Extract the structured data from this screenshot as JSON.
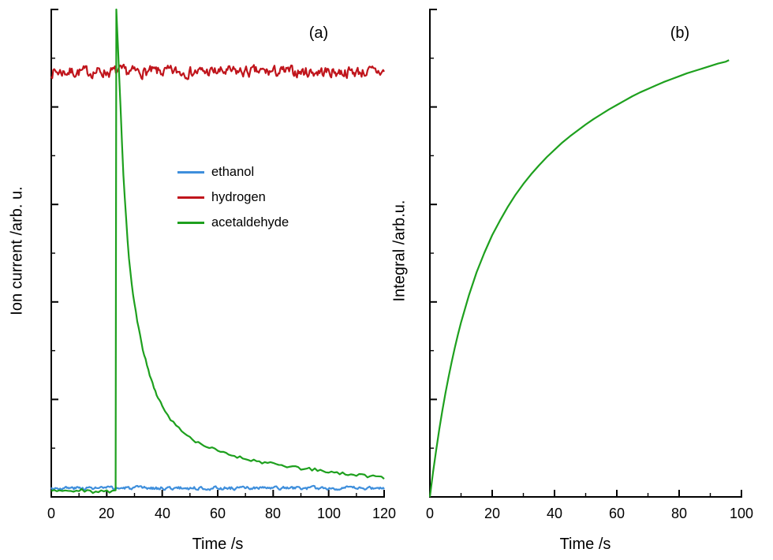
{
  "figure": {
    "background_color": "#ffffff",
    "axis_color": "#000000"
  },
  "chart_data": [
    {
      "id": "a",
      "type": "line",
      "panel_label": "(a)",
      "xlabel": "Time /s",
      "ylabel": "Ion current /arb. u.",
      "xlim": [
        0,
        120
      ],
      "ylim": [
        0,
        1
      ],
      "xticks": [
        0,
        20,
        40,
        60,
        80,
        100,
        120
      ],
      "x_minor_step": 10,
      "yticks": [
        0,
        0.2,
        0.4,
        0.6,
        0.8,
        1
      ],
      "y_minor_step": 0.1,
      "y_tick_labels_shown": false,
      "grid": false,
      "legend": {
        "position": "center-left",
        "entries": [
          "ethanol",
          "hydrogen",
          "acetaldehyde"
        ]
      },
      "series": [
        {
          "name": "ethanol",
          "color": "#3f8fdc",
          "style": "noisy_flat",
          "baseline": 0.018,
          "noise": 0.0035,
          "seed": 3
        },
        {
          "name": "hydrogen",
          "color": "#c0151c",
          "style": "noisy_flat",
          "baseline": 0.872,
          "noise": 0.012,
          "seed": 7
        },
        {
          "name": "acetaldehyde",
          "color": "#1ea01e",
          "style": "points",
          "noise": 0.003,
          "seed": 11,
          "points": [
            [
              0,
              0.012
            ],
            [
              1,
              0.014
            ],
            [
              2,
              0.011
            ],
            [
              3,
              0.013
            ],
            [
              4,
              0.01
            ],
            [
              5,
              0.013
            ],
            [
              6,
              0.015
            ],
            [
              7,
              0.012
            ],
            [
              8,
              0.01
            ],
            [
              9,
              0.013
            ],
            [
              10,
              0.012
            ],
            [
              11,
              0.014
            ],
            [
              12,
              0.011
            ],
            [
              13,
              0.013
            ],
            [
              14,
              0.012
            ],
            [
              15,
              0.01
            ],
            [
              16,
              0.013
            ],
            [
              17,
              0.011
            ],
            [
              18,
              0.014
            ],
            [
              19,
              0.012
            ],
            [
              20,
              0.013
            ],
            [
              21,
              0.011
            ],
            [
              22,
              0.012
            ],
            [
              23,
              0.013
            ],
            [
              23.2,
              0.014
            ],
            [
              23.45,
              0.998
            ],
            [
              23.7,
              0.965
            ],
            [
              24,
              0.928
            ],
            [
              24.5,
              0.862
            ],
            [
              25,
              0.795
            ],
            [
              25.5,
              0.726
            ],
            [
              26,
              0.663
            ],
            [
              26.5,
              0.612
            ],
            [
              27,
              0.568
            ],
            [
              27.5,
              0.528
            ],
            [
              28,
              0.492
            ],
            [
              28.5,
              0.462
            ],
            [
              29,
              0.438
            ],
            [
              29.5,
              0.414
            ],
            [
              30,
              0.396
            ],
            [
              30.5,
              0.378
            ],
            [
              31,
              0.362
            ],
            [
              31.5,
              0.345
            ],
            [
              32,
              0.331
            ],
            [
              32.5,
              0.318
            ],
            [
              33,
              0.304
            ],
            [
              33.5,
              0.293
            ],
            [
              34,
              0.281
            ],
            [
              34.5,
              0.27
            ],
            [
              35,
              0.261
            ],
            [
              35.5,
              0.25
            ],
            [
              36,
              0.242
            ],
            [
              36.5,
              0.233
            ],
            [
              37,
              0.226
            ],
            [
              37.5,
              0.217
            ],
            [
              38,
              0.211
            ],
            [
              38.5,
              0.203
            ],
            [
              39,
              0.198
            ],
            [
              39.5,
              0.191
            ],
            [
              40,
              0.187
            ],
            [
              41,
              0.176
            ],
            [
              42,
              0.169
            ],
            [
              43,
              0.16
            ],
            [
              44,
              0.153
            ],
            [
              45,
              0.147
            ],
            [
              46,
              0.141
            ],
            [
              47,
              0.136
            ],
            [
              48,
              0.13
            ],
            [
              49,
              0.127
            ],
            [
              50,
              0.121
            ],
            [
              51,
              0.119
            ],
            [
              52,
              0.114
            ],
            [
              53,
              0.112
            ],
            [
              54,
              0.108
            ],
            [
              55,
              0.107
            ],
            [
              56,
              0.103
            ],
            [
              57,
              0.101
            ],
            [
              58,
              0.099
            ],
            [
              59,
              0.097
            ],
            [
              60,
              0.094
            ],
            [
              61,
              0.093
            ],
            [
              62,
              0.09
            ],
            [
              63,
              0.09
            ],
            [
              64,
              0.087
            ],
            [
              65,
              0.086
            ],
            [
              66,
              0.084
            ],
            [
              67,
              0.083
            ],
            [
              68,
              0.081
            ],
            [
              69,
              0.08
            ],
            [
              70,
              0.078
            ],
            [
              71,
              0.078
            ],
            [
              72,
              0.076
            ],
            [
              73,
              0.075
            ],
            [
              74,
              0.073
            ],
            [
              75,
              0.073
            ],
            [
              76,
              0.071
            ],
            [
              77,
              0.071
            ],
            [
              78,
              0.069
            ],
            [
              79,
              0.069
            ],
            [
              80,
              0.067
            ],
            [
              81,
              0.067
            ],
            [
              82,
              0.065
            ],
            [
              83,
              0.065
            ],
            [
              84,
              0.063
            ],
            [
              85,
              0.063
            ],
            [
              86,
              0.061
            ],
            [
              87,
              0.062
            ],
            [
              88,
              0.06
            ],
            [
              89,
              0.06
            ],
            [
              90,
              0.058
            ],
            [
              91,
              0.059
            ],
            [
              92,
              0.057
            ],
            [
              93,
              0.057
            ],
            [
              94,
              0.055
            ],
            [
              95,
              0.056
            ],
            [
              96,
              0.054
            ],
            [
              97,
              0.054
            ],
            [
              98,
              0.052
            ],
            [
              99,
              0.053
            ],
            [
              100,
              0.051
            ],
            [
              101,
              0.051
            ],
            [
              102,
              0.05
            ],
            [
              103,
              0.05
            ],
            [
              104,
              0.048
            ],
            [
              105,
              0.049
            ],
            [
              106,
              0.047
            ],
            [
              107,
              0.047
            ],
            [
              108,
              0.046
            ],
            [
              109,
              0.046
            ],
            [
              110,
              0.045
            ],
            [
              111,
              0.045
            ],
            [
              112,
              0.044
            ],
            [
              113,
              0.044
            ],
            [
              114,
              0.043
            ],
            [
              115,
              0.043
            ],
            [
              116,
              0.042
            ],
            [
              117,
              0.042
            ],
            [
              118,
              0.041
            ],
            [
              119,
              0.041
            ],
            [
              120,
              0.04
            ]
          ]
        }
      ]
    },
    {
      "id": "b",
      "type": "line",
      "panel_label": "(b)",
      "xlabel": "Time /s",
      "ylabel": "Integral /arb.u.",
      "xlim": [
        0,
        100
      ],
      "ylim": [
        0,
        1
      ],
      "xticks": [
        0,
        20,
        40,
        60,
        80,
        100
      ],
      "x_minor_step": 10,
      "yticks": [
        0,
        0.2,
        0.4,
        0.6,
        0.8,
        1
      ],
      "y_minor_step": 0.1,
      "y_tick_labels_shown": false,
      "grid": false,
      "series": [
        {
          "name": "integral",
          "color": "#1ea01e",
          "style": "points",
          "points": [
            [
              0,
              0
            ],
            [
              1,
              0.05
            ],
            [
              2,
              0.095
            ],
            [
              3,
              0.138
            ],
            [
              4,
              0.177
            ],
            [
              5,
              0.213
            ],
            [
              6,
              0.246
            ],
            [
              7,
              0.277
            ],
            [
              8,
              0.306
            ],
            [
              9,
              0.333
            ],
            [
              10,
              0.358
            ],
            [
              12.5,
              0.413
            ],
            [
              15,
              0.461
            ],
            [
              17.5,
              0.501
            ],
            [
              20,
              0.537
            ],
            [
              22.5,
              0.567
            ],
            [
              25,
              0.595
            ],
            [
              27.5,
              0.62
            ],
            [
              30,
              0.642
            ],
            [
              32.5,
              0.662
            ],
            [
              35,
              0.68
            ],
            [
              37.5,
              0.697
            ],
            [
              40,
              0.712
            ],
            [
              42.5,
              0.727
            ],
            [
              45,
              0.74
            ],
            [
              47.5,
              0.752
            ],
            [
              50,
              0.764
            ],
            [
              52.5,
              0.775
            ],
            [
              55,
              0.785
            ],
            [
              57.5,
              0.795
            ],
            [
              60,
              0.804
            ],
            [
              62.5,
              0.813
            ],
            [
              65,
              0.822
            ],
            [
              67.5,
              0.83
            ],
            [
              70,
              0.837
            ],
            [
              72.5,
              0.844
            ],
            [
              75,
              0.851
            ],
            [
              77.5,
              0.857
            ],
            [
              80,
              0.863
            ],
            [
              82.5,
              0.869
            ],
            [
              85,
              0.874
            ],
            [
              87.5,
              0.879
            ],
            [
              90,
              0.884
            ],
            [
              92.5,
              0.889
            ],
            [
              95,
              0.893
            ],
            [
              96,
              0.896
            ]
          ]
        }
      ]
    }
  ]
}
